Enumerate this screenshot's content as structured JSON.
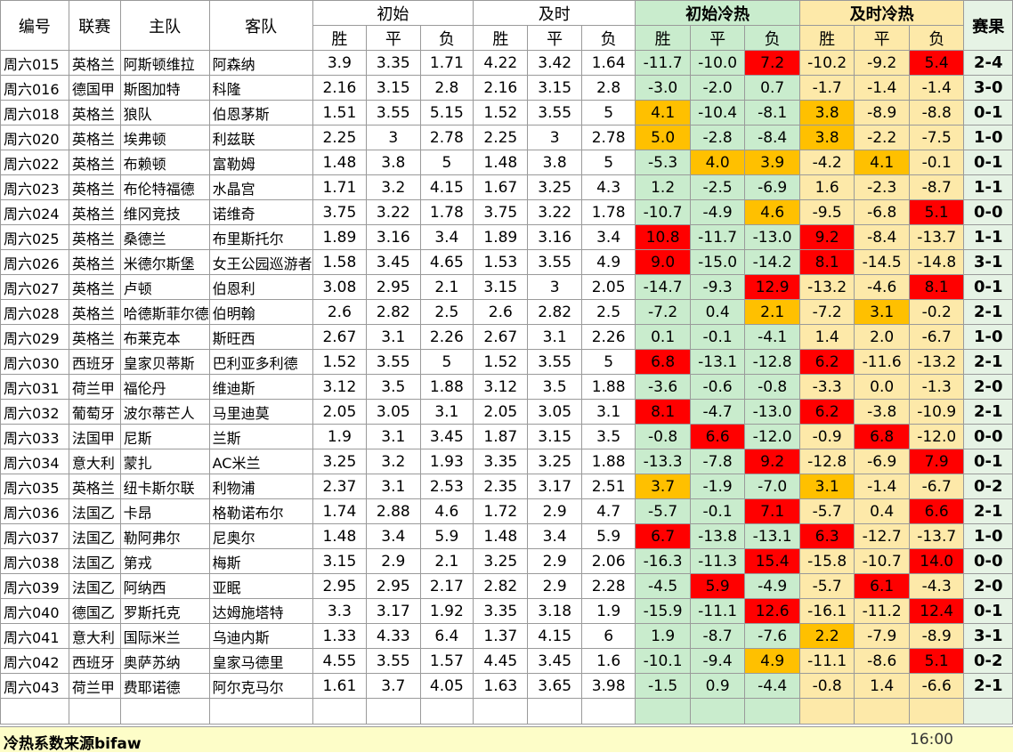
{
  "headers": {
    "id": "编号",
    "league": "联赛",
    "home": "主队",
    "away": "客队",
    "initial": "初始",
    "live": "及时",
    "initial_hot": "初始冷热",
    "live_hot": "及时冷热",
    "result": "赛果",
    "win": "胜",
    "draw": "平",
    "loss": "负"
  },
  "rows": [
    {
      "id": "周六015",
      "league": "英格兰",
      "home": "阿斯顿维拉",
      "away": "阿森纳",
      "init": [
        "3.9",
        "3.35",
        "1.71"
      ],
      "live": [
        "4.22",
        "3.42",
        "1.64"
      ],
      "init_hot": [
        "-11.7",
        "-10.0",
        "7.2"
      ],
      "live_hot": [
        "-10.2",
        "-9.2",
        "5.4"
      ],
      "init_hl": [
        "",
        "",
        "red"
      ],
      "live_hl": [
        "",
        "",
        "red"
      ],
      "result": "2-4"
    },
    {
      "id": "周六016",
      "league": "德国甲",
      "home": "斯图加特",
      "away": "科隆",
      "init": [
        "2.16",
        "3.15",
        "2.8"
      ],
      "live": [
        "2.16",
        "3.15",
        "2.8"
      ],
      "init_hot": [
        "-3.0",
        "-2.0",
        "0.7"
      ],
      "live_hot": [
        "-1.7",
        "-1.4",
        "-1.4"
      ],
      "init_hl": [
        "",
        "",
        ""
      ],
      "live_hl": [
        "",
        "",
        ""
      ],
      "result": "3-0"
    },
    {
      "id": "周六018",
      "league": "英格兰",
      "home": "狼队",
      "away": "伯恩茅斯",
      "init": [
        "1.51",
        "3.55",
        "5.15"
      ],
      "live": [
        "1.52",
        "3.55",
        "5"
      ],
      "init_hot": [
        "4.1",
        "-10.4",
        "-8.1"
      ],
      "live_hot": [
        "3.8",
        "-8.9",
        "-8.8"
      ],
      "init_hl": [
        "orange",
        "",
        ""
      ],
      "live_hl": [
        "orange",
        "",
        ""
      ],
      "result": "0-1"
    },
    {
      "id": "周六020",
      "league": "英格兰",
      "home": "埃弗顿",
      "away": "利兹联",
      "init": [
        "2.25",
        "3",
        "2.78"
      ],
      "live": [
        "2.25",
        "3",
        "2.78"
      ],
      "init_hot": [
        "5.0",
        "-2.8",
        "-8.4"
      ],
      "live_hot": [
        "3.8",
        "-2.2",
        "-7.5"
      ],
      "init_hl": [
        "orange",
        "",
        ""
      ],
      "live_hl": [
        "orange",
        "",
        ""
      ],
      "result": "1-0"
    },
    {
      "id": "周六022",
      "league": "英格兰",
      "home": "布赖顿",
      "away": "富勒姆",
      "init": [
        "1.48",
        "3.8",
        "5"
      ],
      "live": [
        "1.48",
        "3.8",
        "5"
      ],
      "init_hot": [
        "-5.3",
        "4.0",
        "3.9"
      ],
      "live_hot": [
        "-4.2",
        "4.1",
        "-0.1"
      ],
      "init_hl": [
        "",
        "orange",
        "orange"
      ],
      "live_hl": [
        "",
        "orange",
        ""
      ],
      "result": "0-1"
    },
    {
      "id": "周六023",
      "league": "英格兰",
      "home": "布伦特福德",
      "away": "水晶宫",
      "init": [
        "1.71",
        "3.2",
        "4.15"
      ],
      "live": [
        "1.67",
        "3.25",
        "4.3"
      ],
      "init_hot": [
        "1.2",
        "-2.5",
        "-6.9"
      ],
      "live_hot": [
        "1.6",
        "-2.3",
        "-8.7"
      ],
      "init_hl": [
        "",
        "",
        ""
      ],
      "live_hl": [
        "",
        "",
        ""
      ],
      "result": "1-1"
    },
    {
      "id": "周六024",
      "league": "英格兰",
      "home": "维冈竞技",
      "away": "诺维奇",
      "init": [
        "3.75",
        "3.22",
        "1.78"
      ],
      "live": [
        "3.75",
        "3.22",
        "1.78"
      ],
      "init_hot": [
        "-10.7",
        "-4.9",
        "4.6"
      ],
      "live_hot": [
        "-9.5",
        "-6.8",
        "5.1"
      ],
      "init_hl": [
        "",
        "",
        "orange"
      ],
      "live_hl": [
        "",
        "",
        "red"
      ],
      "result": "0-0"
    },
    {
      "id": "周六025",
      "league": "英格兰",
      "home": "桑德兰",
      "away": "布里斯托尔",
      "init": [
        "1.89",
        "3.16",
        "3.4"
      ],
      "live": [
        "1.89",
        "3.16",
        "3.4"
      ],
      "init_hot": [
        "10.8",
        "-11.7",
        "-13.0"
      ],
      "live_hot": [
        "9.2",
        "-8.4",
        "-13.7"
      ],
      "init_hl": [
        "red",
        "",
        ""
      ],
      "live_hl": [
        "red",
        "",
        ""
      ],
      "result": "1-1"
    },
    {
      "id": "周六026",
      "league": "英格兰",
      "home": "米德尔斯堡",
      "away": "女王公园巡游者",
      "init": [
        "1.58",
        "3.45",
        "4.65"
      ],
      "live": [
        "1.53",
        "3.55",
        "4.9"
      ],
      "init_hot": [
        "9.0",
        "-15.0",
        "-14.2"
      ],
      "live_hot": [
        "8.1",
        "-14.5",
        "-14.8"
      ],
      "init_hl": [
        "red",
        "",
        ""
      ],
      "live_hl": [
        "red",
        "",
        ""
      ],
      "result": "3-1"
    },
    {
      "id": "周六027",
      "league": "英格兰",
      "home": "卢顿",
      "away": "伯恩利",
      "init": [
        "3.08",
        "2.95",
        "2.1"
      ],
      "live": [
        "3.15",
        "3",
        "2.05"
      ],
      "init_hot": [
        "-14.7",
        "-9.3",
        "12.9"
      ],
      "live_hot": [
        "-13.2",
        "-4.6",
        "8.1"
      ],
      "init_hl": [
        "",
        "",
        "red"
      ],
      "live_hl": [
        "",
        "",
        "red"
      ],
      "result": "0-1"
    },
    {
      "id": "周六028",
      "league": "英格兰",
      "home": "哈德斯菲尔德",
      "away": "伯明翰",
      "init": [
        "2.6",
        "2.82",
        "2.5"
      ],
      "live": [
        "2.6",
        "2.82",
        "2.5"
      ],
      "init_hot": [
        "-7.2",
        "0.4",
        "2.1"
      ],
      "live_hot": [
        "-7.2",
        "3.1",
        "-0.2"
      ],
      "init_hl": [
        "",
        "",
        "orange"
      ],
      "live_hl": [
        "",
        "orange",
        ""
      ],
      "result": "2-1"
    },
    {
      "id": "周六029",
      "league": "英格兰",
      "home": "布莱克本",
      "away": "斯旺西",
      "init": [
        "2.67",
        "3.1",
        "2.26"
      ],
      "live": [
        "2.67",
        "3.1",
        "2.26"
      ],
      "init_hot": [
        "0.1",
        "-0.1",
        "-4.1"
      ],
      "live_hot": [
        "1.4",
        "2.0",
        "-6.7"
      ],
      "init_hl": [
        "",
        "",
        ""
      ],
      "live_hl": [
        "",
        "",
        ""
      ],
      "result": "1-0"
    },
    {
      "id": "周六030",
      "league": "西班牙",
      "home": "皇家贝蒂斯",
      "away": "巴利亚多利德",
      "init": [
        "1.52",
        "3.55",
        "5"
      ],
      "live": [
        "1.52",
        "3.55",
        "5"
      ],
      "init_hot": [
        "6.8",
        "-13.1",
        "-12.8"
      ],
      "live_hot": [
        "6.2",
        "-11.6",
        "-13.2"
      ],
      "init_hl": [
        "red",
        "",
        ""
      ],
      "live_hl": [
        "red",
        "",
        ""
      ],
      "result": "2-1"
    },
    {
      "id": "周六031",
      "league": "荷兰甲",
      "home": "福伦丹",
      "away": "维迪斯",
      "init": [
        "3.12",
        "3.5",
        "1.88"
      ],
      "live": [
        "3.12",
        "3.5",
        "1.88"
      ],
      "init_hot": [
        "-3.6",
        "-0.6",
        "-0.8"
      ],
      "live_hot": [
        "-3.3",
        "0.0",
        "-1.3"
      ],
      "init_hl": [
        "",
        "",
        ""
      ],
      "live_hl": [
        "",
        "",
        ""
      ],
      "result": "2-0"
    },
    {
      "id": "周六032",
      "league": "葡萄牙",
      "home": "波尔蒂芒人",
      "away": "马里迪莫",
      "init": [
        "2.05",
        "3.05",
        "3.1"
      ],
      "live": [
        "2.05",
        "3.05",
        "3.1"
      ],
      "init_hot": [
        "8.1",
        "-4.7",
        "-13.0"
      ],
      "live_hot": [
        "6.2",
        "-3.8",
        "-10.9"
      ],
      "init_hl": [
        "red",
        "",
        ""
      ],
      "live_hl": [
        "red",
        "",
        ""
      ],
      "result": "2-1"
    },
    {
      "id": "周六033",
      "league": "法国甲",
      "home": "尼斯",
      "away": "兰斯",
      "init": [
        "1.9",
        "3.1",
        "3.45"
      ],
      "live": [
        "1.87",
        "3.15",
        "3.5"
      ],
      "init_hot": [
        "-0.8",
        "6.6",
        "-12.0"
      ],
      "live_hot": [
        "-0.9",
        "6.8",
        "-12.0"
      ],
      "init_hl": [
        "",
        "red",
        ""
      ],
      "live_hl": [
        "",
        "red",
        ""
      ],
      "result": "0-0"
    },
    {
      "id": "周六034",
      "league": "意大利",
      "home": "蒙扎",
      "away": "AC米兰",
      "init": [
        "3.25",
        "3.2",
        "1.93"
      ],
      "live": [
        "3.35",
        "3.25",
        "1.88"
      ],
      "init_hot": [
        "-13.3",
        "-7.8",
        "9.2"
      ],
      "live_hot": [
        "-12.8",
        "-6.9",
        "7.9"
      ],
      "init_hl": [
        "",
        "",
        "red"
      ],
      "live_hl": [
        "",
        "",
        "red"
      ],
      "result": "0-1"
    },
    {
      "id": "周六035",
      "league": "英格兰",
      "home": "纽卡斯尔联",
      "away": "利物浦",
      "init": [
        "2.37",
        "3.1",
        "2.53"
      ],
      "live": [
        "2.35",
        "3.17",
        "2.51"
      ],
      "init_hot": [
        "3.7",
        "-1.9",
        "-7.0"
      ],
      "live_hot": [
        "3.1",
        "-1.4",
        "-6.7"
      ],
      "init_hl": [
        "orange",
        "",
        ""
      ],
      "live_hl": [
        "orange",
        "",
        ""
      ],
      "result": "0-2"
    },
    {
      "id": "周六036",
      "league": "法国乙",
      "home": "卡昂",
      "away": "格勒诺布尔",
      "init": [
        "1.74",
        "2.88",
        "4.6"
      ],
      "live": [
        "1.72",
        "2.9",
        "4.7"
      ],
      "init_hot": [
        "-5.7",
        "-0.1",
        "7.1"
      ],
      "live_hot": [
        "-5.7",
        "0.4",
        "6.6"
      ],
      "init_hl": [
        "",
        "",
        "red"
      ],
      "live_hl": [
        "",
        "",
        "red"
      ],
      "result": "2-1"
    },
    {
      "id": "周六037",
      "league": "法国乙",
      "home": "勒阿弗尔",
      "away": "尼奥尔",
      "init": [
        "1.48",
        "3.4",
        "5.9"
      ],
      "live": [
        "1.48",
        "3.4",
        "5.9"
      ],
      "init_hot": [
        "6.7",
        "-13.8",
        "-13.1"
      ],
      "live_hot": [
        "6.3",
        "-12.7",
        "-13.7"
      ],
      "init_hl": [
        "red",
        "",
        ""
      ],
      "live_hl": [
        "red",
        "",
        ""
      ],
      "result": "1-0"
    },
    {
      "id": "周六038",
      "league": "法国乙",
      "home": "第戎",
      "away": "梅斯",
      "init": [
        "3.15",
        "2.9",
        "2.1"
      ],
      "live": [
        "3.25",
        "2.9",
        "2.06"
      ],
      "init_hot": [
        "-16.3",
        "-11.3",
        "15.4"
      ],
      "live_hot": [
        "-15.8",
        "-10.7",
        "14.0"
      ],
      "init_hl": [
        "",
        "",
        "red"
      ],
      "live_hl": [
        "",
        "",
        "red"
      ],
      "result": "0-0"
    },
    {
      "id": "周六039",
      "league": "法国乙",
      "home": "阿纳西",
      "away": "亚眠",
      "init": [
        "2.95",
        "2.95",
        "2.17"
      ],
      "live": [
        "2.82",
        "2.9",
        "2.28"
      ],
      "init_hot": [
        "-4.5",
        "5.9",
        "-4.9"
      ],
      "live_hot": [
        "-5.7",
        "6.1",
        "-4.3"
      ],
      "init_hl": [
        "",
        "red",
        ""
      ],
      "live_hl": [
        "",
        "red",
        ""
      ],
      "result": "2-0"
    },
    {
      "id": "周六040",
      "league": "德国乙",
      "home": "罗斯托克",
      "away": "达姆施塔特",
      "init": [
        "3.3",
        "3.17",
        "1.92"
      ],
      "live": [
        "3.35",
        "3.18",
        "1.9"
      ],
      "init_hot": [
        "-15.9",
        "-11.1",
        "12.6"
      ],
      "live_hot": [
        "-16.1",
        "-11.2",
        "12.4"
      ],
      "init_hl": [
        "",
        "",
        "red"
      ],
      "live_hl": [
        "",
        "",
        "red"
      ],
      "result": "0-1"
    },
    {
      "id": "周六041",
      "league": "意大利",
      "home": "国际米兰",
      "away": "乌迪内斯",
      "init": [
        "1.33",
        "4.33",
        "6.4"
      ],
      "live": [
        "1.37",
        "4.15",
        "6"
      ],
      "init_hot": [
        "1.9",
        "-8.7",
        "-7.6"
      ],
      "live_hot": [
        "2.2",
        "-7.9",
        "-8.9"
      ],
      "init_hl": [
        "",
        "",
        ""
      ],
      "live_hl": [
        "orange",
        "",
        ""
      ],
      "result": "3-1"
    },
    {
      "id": "周六042",
      "league": "西班牙",
      "home": "奥萨苏纳",
      "away": "皇家马德里",
      "init": [
        "4.55",
        "3.55",
        "1.57"
      ],
      "live": [
        "4.45",
        "3.45",
        "1.6"
      ],
      "init_hot": [
        "-10.1",
        "-9.4",
        "4.9"
      ],
      "live_hot": [
        "-11.1",
        "-8.6",
        "5.1"
      ],
      "init_hl": [
        "",
        "",
        "orange"
      ],
      "live_hl": [
        "",
        "",
        "red"
      ],
      "result": "0-2"
    },
    {
      "id": "周六043",
      "league": "荷兰甲",
      "home": "费耶诺德",
      "away": "阿尔克马尔",
      "init": [
        "1.61",
        "3.7",
        "4.05"
      ],
      "live": [
        "1.63",
        "3.65",
        "3.98"
      ],
      "init_hot": [
        "-1.5",
        "0.9",
        "-4.4"
      ],
      "live_hot": [
        "-0.8",
        "1.4",
        "-6.6"
      ],
      "init_hl": [
        "",
        "",
        ""
      ],
      "live_hl": [
        "",
        "",
        ""
      ],
      "result": "2-1"
    }
  ],
  "footer": {
    "source": "冷热系数来源bifaw",
    "time": "16:00"
  },
  "colors": {
    "hot_red": "#ff0000",
    "hot_orange": "#ffc000",
    "init_hot_bg": "#c9eccd",
    "live_hot_bg": "#fde9a9",
    "result_bg": "#e6f3e5"
  }
}
